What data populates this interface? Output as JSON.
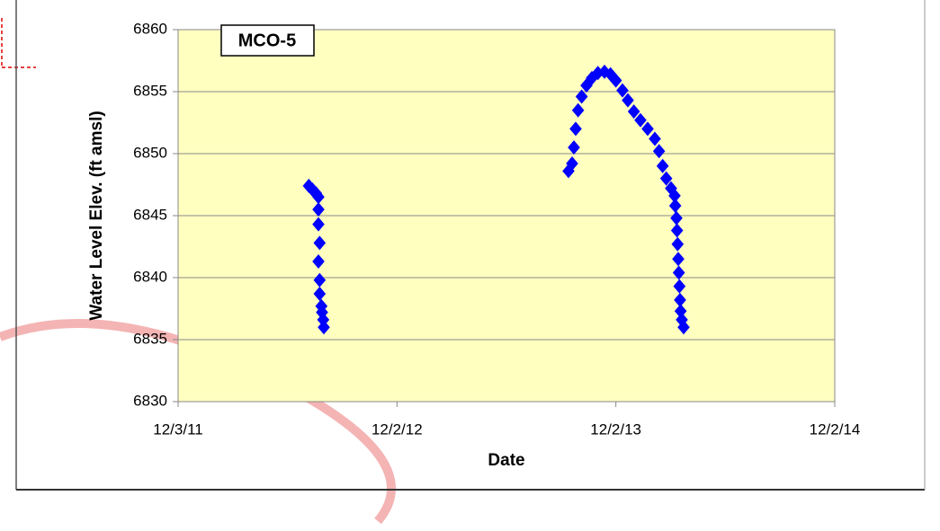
{
  "chart_data": {
    "type": "scatter",
    "annotation": "MCO-5",
    "x_label": "Date",
    "y_label": "Water Level Elev. (ft amsl)",
    "xlim": [
      "12/3/11",
      "12/2/14"
    ],
    "xticks": [
      "12/3/11",
      "12/2/12",
      "12/2/13",
      "12/2/14"
    ],
    "ylim": [
      6830,
      6860
    ],
    "yticks": [
      6830,
      6835,
      6840,
      6845,
      6850,
      6855,
      6860
    ],
    "grid": true,
    "series": [
      {
        "color": "#0000ff",
        "x": [
          "7/8/12",
          "7/14/12",
          "7/20/12",
          "7/24/12",
          "7/24/12",
          "7/24/12",
          "7/26/12",
          "7/24/12",
          "7/26/12",
          "7/26/12",
          "7/29/12",
          "7/30/12",
          "8/1/12",
          "8/2/12",
          "9/14/13",
          "9/20/13",
          "9/23/13",
          "9/26/13",
          "9/30/13",
          "10/6/13",
          "10/14/13",
          "10/23/13",
          "11/2/13",
          "11/13/13",
          "11/23/13",
          "12/2/13",
          "12/13/13",
          "12/22/13",
          "1/1/14",
          "1/12/14",
          "1/24/14",
          "2/5/14",
          "2/12/14",
          "2/18/14",
          "2/24/14",
          "3/4/14",
          "3/10/14",
          "3/11/14",
          "3/13/14",
          "3/14/14",
          "3/15/14",
          "3/16/14",
          "3/17/14",
          "3/18/14",
          "3/19/14",
          "3/20/14",
          "3/22/14",
          "3/25/14"
        ],
        "values": [
          6847.4,
          6847.1,
          6846.8,
          6846.5,
          6845.5,
          6844.3,
          6842.8,
          6841.3,
          6839.8,
          6838.7,
          6837.7,
          6837.2,
          6836.6,
          6836.0,
          6848.6,
          6849.2,
          6850.5,
          6852.0,
          6853.5,
          6854.6,
          6855.5,
          6856.1,
          6856.5,
          6856.6,
          6856.4,
          6855.9,
          6855.1,
          6854.3,
          6853.4,
          6852.7,
          6852.0,
          6851.2,
          6850.2,
          6849.0,
          6848.0,
          6847.2,
          6846.6,
          6845.8,
          6844.8,
          6843.8,
          6842.7,
          6841.5,
          6840.4,
          6839.3,
          6838.2,
          6837.3,
          6836.6,
          6836.0
        ]
      }
    ]
  }
}
